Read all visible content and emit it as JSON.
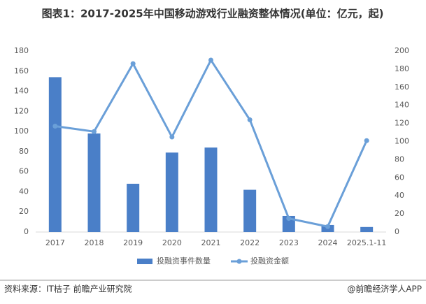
{
  "chart_data": {
    "type": "bar-line",
    "title": "图表1：2017-2025年中国移动游戏行业融资整体情况(单位：亿元，起)",
    "categories": [
      "2017",
      "2018",
      "2019",
      "2020",
      "2021",
      "2022",
      "2023",
      "2024",
      "2025.1-11"
    ],
    "series": [
      {
        "name": "投融资事件数量",
        "type": "bar",
        "color": "#4a7fc8",
        "values": [
          154,
          98,
          48,
          79,
          84,
          42,
          16,
          7,
          5
        ]
      },
      {
        "name": "投融资金额",
        "type": "line",
        "axis": "y2",
        "color": "#6a9fd8",
        "values": [
          117,
          111,
          186,
          105,
          190,
          124,
          15,
          6,
          101
        ]
      }
    ],
    "ylim": [
      0,
      180
    ],
    "yticks": [
      0,
      20,
      40,
      60,
      80,
      100,
      120,
      140,
      160,
      180
    ],
    "y2lim": [
      0,
      200
    ],
    "y2ticks": [
      0,
      20,
      40,
      60,
      80,
      100,
      120,
      140,
      160,
      180,
      200
    ],
    "source": "资料来源：IT桔子 前瞻产业研究院",
    "credit": "@前瞻经济学人APP"
  }
}
